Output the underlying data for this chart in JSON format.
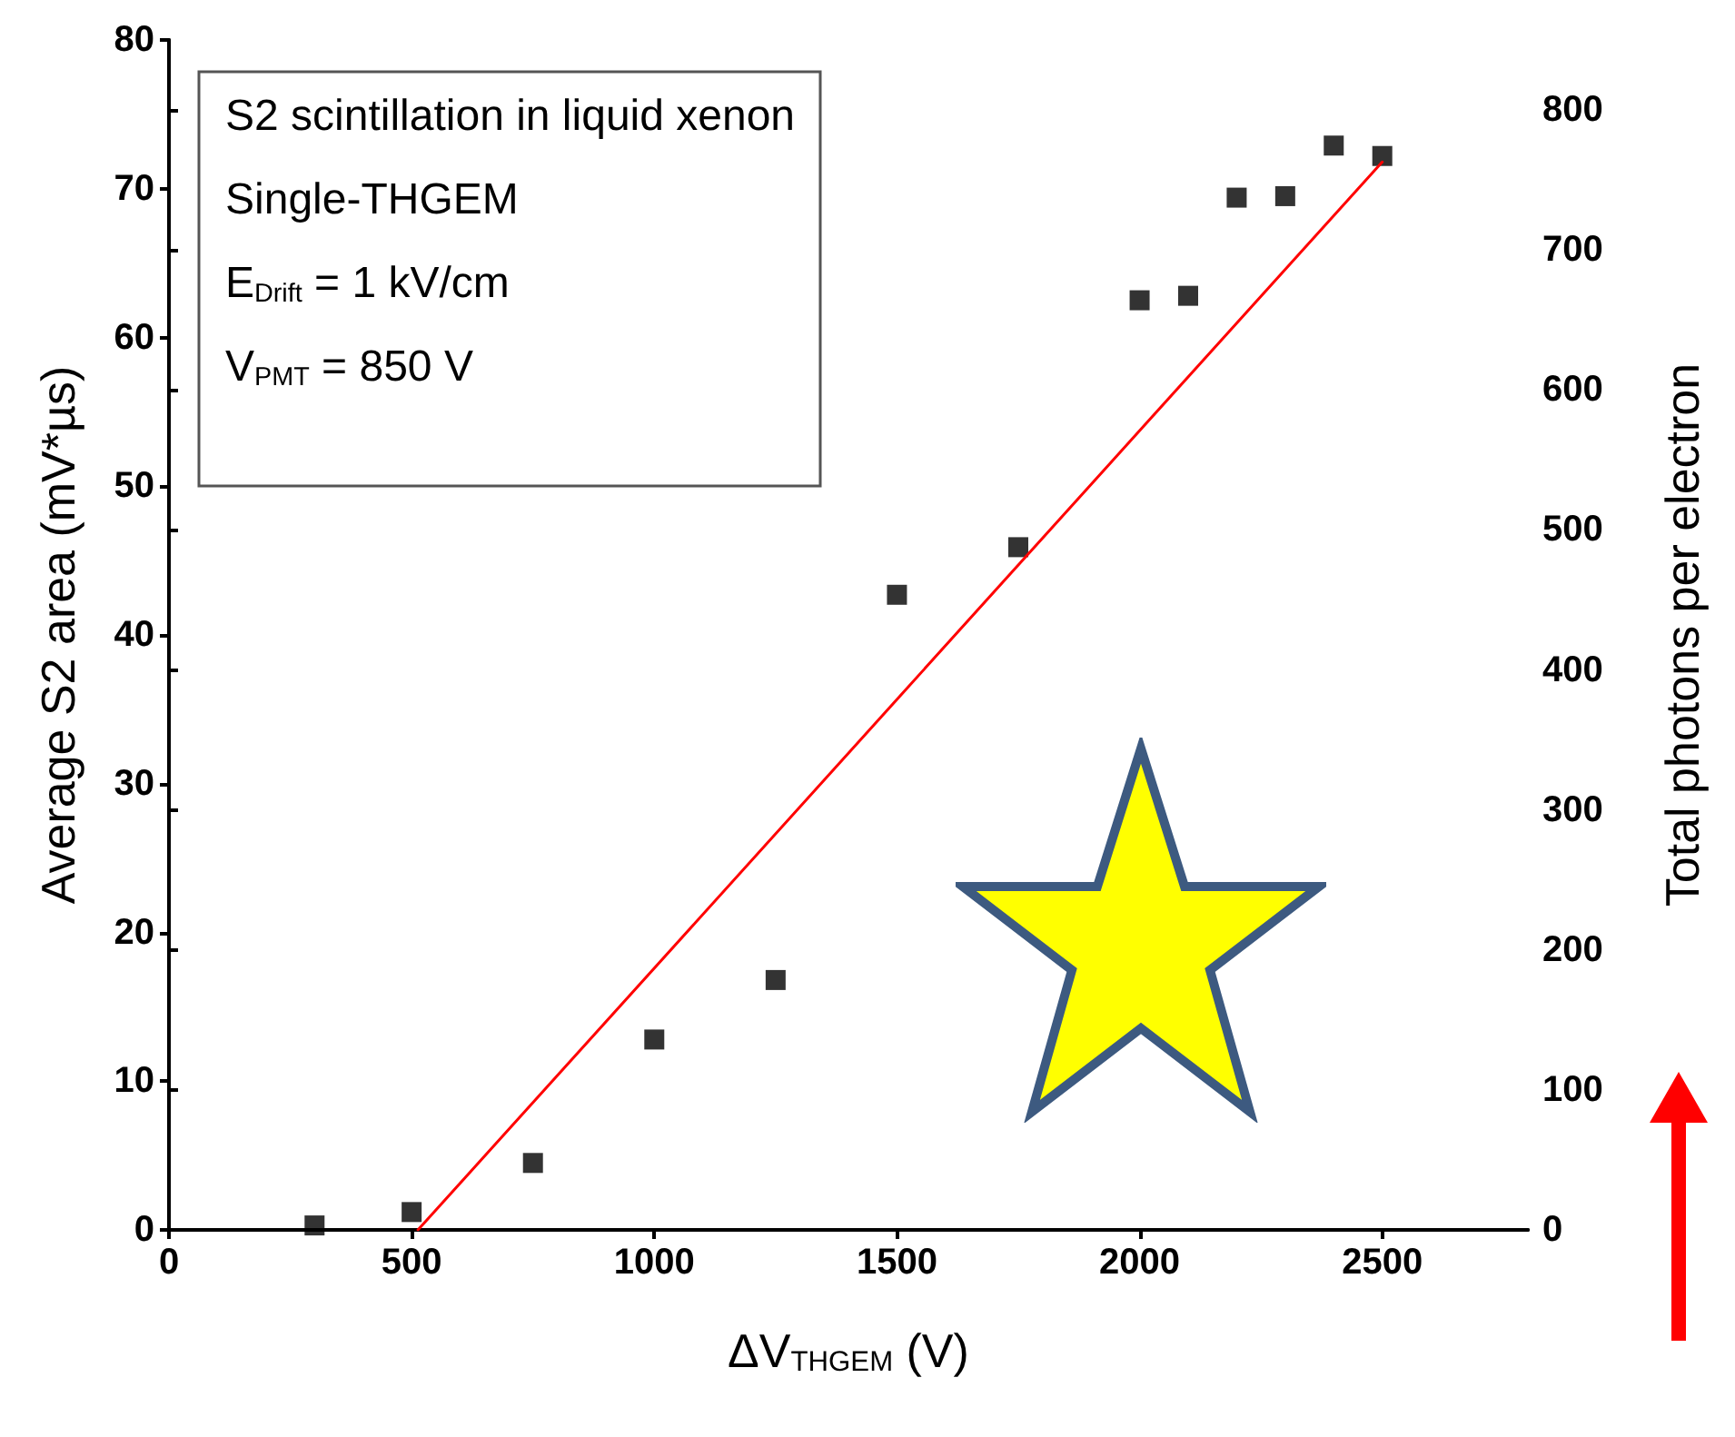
{
  "chart_data": {
    "type": "scatter",
    "xlabel": "ΔV$_{THGEM}$ (V)",
    "ylabel": "Average S2 area (mV*µs)",
    "y2label": "Total photons per electron",
    "annotations": [
      "S2 scintillation in liquid xenon",
      "Single-THGEM",
      "E$_{Drift}$ = 1 kV/cm",
      "V$_{PMT}$ = 850 V"
    ],
    "x": [
      300,
      500,
      750,
      1000,
      1250,
      1500,
      1750,
      2000,
      2100,
      2200,
      2300,
      2400,
      2500
    ],
    "series": [
      {
        "color": "#000000",
        "values": [
          0.3,
          1.2,
          4.5,
          12.8,
          16.8,
          42.7,
          45.9,
          62.5,
          62.8,
          69.4,
          69.5,
          72.9,
          72.2
        ]
      },
      {
        "type": "line",
        "color": "#ff0000",
        "marker": "none",
        "x": [
          513,
          2500
        ],
        "values": [
          0,
          71.8
        ]
      }
    ],
    "xlim": [
      0,
      2800
    ],
    "xticks": [
      0,
      500,
      1000,
      1500,
      2000,
      2500
    ],
    "ylim": [
      0,
      80
    ],
    "yticks": [
      0,
      10,
      20,
      30,
      40,
      50,
      60,
      70,
      80
    ],
    "y2lim": [
      0,
      850
    ],
    "y2ticks": [
      0,
      100,
      200,
      300,
      400,
      500,
      600,
      700,
      800
    ],
    "marker": "square"
  }
}
